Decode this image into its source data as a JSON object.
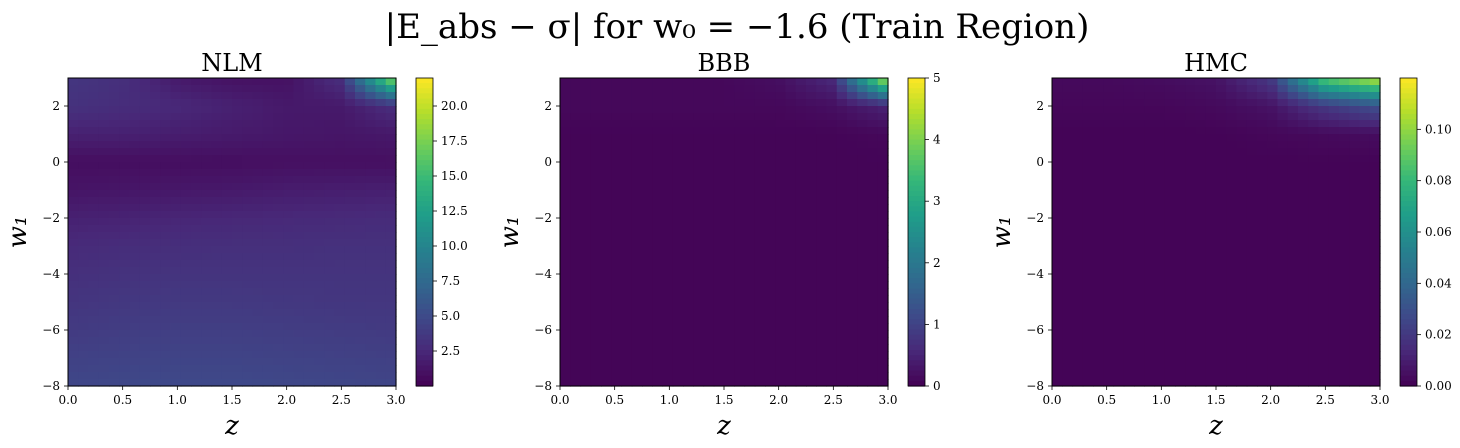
{
  "figure": {
    "title": "|E_abs − σ| for w₀ = −1.6 (Train Region)"
  },
  "colormap": {
    "name": "viridis",
    "stops": [
      "#440154",
      "#482878",
      "#3e4989",
      "#31688e",
      "#26828e",
      "#1f9e89",
      "#35b779",
      "#6ece58",
      "#b5de2b",
      "#fde725"
    ]
  },
  "chart_data": [
    {
      "type": "heatmap",
      "title": "NLM",
      "xlabel": "z",
      "ylabel": "w₁",
      "xlim": [
        0.0,
        3.0
      ],
      "ylim": [
        -8,
        3
      ],
      "xticks": [
        "0.0",
        "0.5",
        "1.0",
        "1.5",
        "2.0",
        "2.5",
        "3.0"
      ],
      "yticks": [
        "−8",
        "−6",
        "−4",
        "−2",
        "0",
        "2"
      ],
      "colorbar": {
        "min": 0,
        "max": 22,
        "ticks": [
          "2.5",
          "5.0",
          "7.5",
          "10.0",
          "12.5",
          "15.0",
          "17.5",
          "20.0"
        ]
      },
      "grid": {
        "z": [
          0.0,
          0.5,
          1.0,
          1.5,
          2.0,
          2.5,
          3.0
        ],
        "w1": [
          3,
          2,
          1,
          0,
          -1,
          -2,
          -3,
          -4,
          -5,
          -6,
          -7,
          -8
        ],
        "values": [
          [
            3.5,
            3.0,
            1.5,
            1.0,
            1.0,
            3.0,
            19.0
          ],
          [
            3.2,
            2.8,
            2.5,
            2.0,
            1.5,
            1.5,
            3.0
          ],
          [
            2.0,
            2.0,
            1.8,
            1.6,
            1.4,
            1.3,
            1.5
          ],
          [
            0.8,
            0.8,
            0.8,
            0.8,
            0.9,
            0.9,
            0.9
          ],
          [
            1.2,
            1.3,
            1.4,
            1.5,
            1.7,
            1.8,
            1.9
          ],
          [
            2.0,
            2.1,
            2.3,
            2.4,
            2.5,
            2.6,
            2.7
          ],
          [
            2.6,
            2.8,
            2.9,
            3.0,
            3.0,
            3.1,
            3.1
          ],
          [
            3.0,
            3.2,
            3.3,
            3.3,
            3.3,
            3.3,
            3.3
          ],
          [
            3.4,
            3.6,
            3.7,
            3.7,
            3.6,
            3.5,
            3.5
          ],
          [
            3.8,
            4.0,
            4.1,
            4.1,
            4.0,
            3.9,
            3.8
          ],
          [
            4.3,
            4.4,
            4.5,
            4.5,
            4.4,
            4.3,
            4.2
          ],
          [
            4.7,
            4.8,
            4.9,
            4.9,
            4.8,
            4.7,
            4.6
          ]
        ]
      }
    },
    {
      "type": "heatmap",
      "title": "BBB",
      "xlabel": "z",
      "ylabel": "w₁",
      "xlim": [
        0.0,
        3.0
      ],
      "ylim": [
        -8,
        3
      ],
      "xticks": [
        "0.0",
        "0.5",
        "1.0",
        "1.5",
        "2.0",
        "2.5",
        "3.0"
      ],
      "yticks": [
        "−8",
        "−6",
        "−4",
        "−2",
        "0",
        "2"
      ],
      "colorbar": {
        "min": 0,
        "max": 5,
        "ticks": [
          "0",
          "1",
          "2",
          "3",
          "4",
          "5"
        ]
      },
      "grid": {
        "z": [
          0.0,
          0.5,
          1.0,
          1.5,
          2.0,
          2.5,
          3.0
        ],
        "w1": [
          3,
          2,
          1,
          0,
          -1,
          -2,
          -3,
          -4,
          -5,
          -6,
          -7,
          -8
        ],
        "values": [
          [
            0.1,
            0.1,
            0.1,
            0.1,
            0.2,
            0.6,
            4.6
          ],
          [
            0.1,
            0.1,
            0.1,
            0.1,
            0.1,
            0.2,
            0.5
          ],
          [
            0.05,
            0.05,
            0.05,
            0.05,
            0.05,
            0.05,
            0.1
          ],
          [
            0.05,
            0.05,
            0.05,
            0.05,
            0.05,
            0.05,
            0.05
          ],
          [
            0.05,
            0.05,
            0.05,
            0.05,
            0.05,
            0.05,
            0.05
          ],
          [
            0.05,
            0.05,
            0.05,
            0.05,
            0.05,
            0.05,
            0.05
          ],
          [
            0.05,
            0.05,
            0.05,
            0.05,
            0.05,
            0.05,
            0.05
          ],
          [
            0.05,
            0.05,
            0.05,
            0.05,
            0.05,
            0.05,
            0.05
          ],
          [
            0.05,
            0.05,
            0.05,
            0.05,
            0.05,
            0.05,
            0.05
          ],
          [
            0.05,
            0.05,
            0.05,
            0.05,
            0.05,
            0.05,
            0.05
          ],
          [
            0.05,
            0.05,
            0.05,
            0.05,
            0.05,
            0.05,
            0.05
          ],
          [
            0.05,
            0.05,
            0.05,
            0.05,
            0.05,
            0.05,
            0.05
          ]
        ]
      }
    },
    {
      "type": "heatmap",
      "title": "HMC",
      "xlabel": "z",
      "ylabel": "w₁",
      "xlim": [
        0.0,
        3.0
      ],
      "ylim": [
        -8,
        3
      ],
      "xticks": [
        "0.0",
        "0.5",
        "1.0",
        "1.5",
        "2.0",
        "2.5",
        "3.0"
      ],
      "yticks": [
        "−8",
        "−6",
        "−4",
        "−2",
        "0",
        "2"
      ],
      "colorbar": {
        "min": 0,
        "max": 0.12,
        "ticks": [
          "0.00",
          "0.02",
          "0.04",
          "0.06",
          "0.08",
          "0.10"
        ]
      },
      "grid": {
        "z": [
          0.0,
          0.5,
          1.0,
          1.5,
          2.0,
          2.5,
          3.0
        ],
        "w1": [
          3,
          2,
          1,
          0,
          -1,
          -2,
          -3,
          -4,
          -5,
          -6,
          -7,
          -8
        ],
        "values": [
          [
            0.003,
            0.003,
            0.004,
            0.006,
            0.02,
            0.09,
            0.11
          ],
          [
            0.002,
            0.002,
            0.002,
            0.003,
            0.006,
            0.02,
            0.03
          ],
          [
            0.001,
            0.001,
            0.001,
            0.001,
            0.002,
            0.003,
            0.004
          ],
          [
            0.001,
            0.001,
            0.001,
            0.001,
            0.001,
            0.001,
            0.001
          ],
          [
            0.001,
            0.001,
            0.001,
            0.001,
            0.001,
            0.001,
            0.001
          ],
          [
            0.001,
            0.001,
            0.001,
            0.001,
            0.001,
            0.001,
            0.001
          ],
          [
            0.001,
            0.001,
            0.001,
            0.001,
            0.001,
            0.001,
            0.001
          ],
          [
            0.001,
            0.001,
            0.001,
            0.001,
            0.001,
            0.001,
            0.001
          ],
          [
            0.001,
            0.001,
            0.001,
            0.001,
            0.001,
            0.001,
            0.001
          ],
          [
            0.001,
            0.001,
            0.001,
            0.001,
            0.001,
            0.001,
            0.001
          ],
          [
            0.001,
            0.001,
            0.001,
            0.001,
            0.001,
            0.001,
            0.001
          ],
          [
            0.001,
            0.001,
            0.001,
            0.001,
            0.001,
            0.001,
            0.001
          ]
        ]
      }
    }
  ]
}
